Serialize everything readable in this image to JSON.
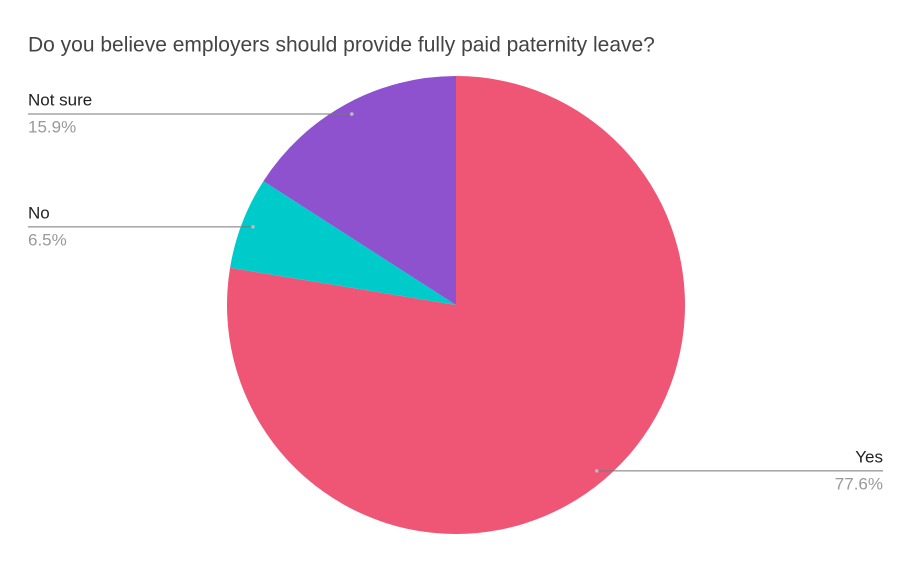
{
  "chart_data": {
    "type": "pie",
    "title": "Do you believe employers should provide fully paid paternity leave?",
    "categories": [
      "Yes",
      "No",
      "Not sure"
    ],
    "values": [
      77.6,
      6.5,
      15.9
    ],
    "value_labels": [
      "77.6%",
      "6.5%",
      "15.9%"
    ],
    "colors": [
      "#ef5675",
      "#00cbcb",
      "#8e52cf"
    ]
  }
}
